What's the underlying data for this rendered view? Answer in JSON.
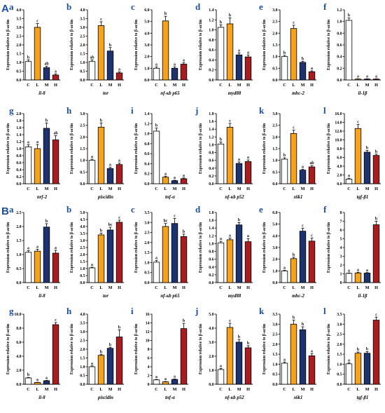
{
  "colors": {
    "C": "#ffffff",
    "L": "#f7a21b",
    "M": "#1d3370",
    "H": "#a91d21",
    "label": "#1a4fa0"
  },
  "sections": [
    {
      "label": "A",
      "panels": [
        {
          "letter": "a",
          "gene": "il-8",
          "ylabel": "Expression relative to β-actin",
          "yticks": [
            "0.0",
            "0.5",
            "1.0",
            "1.5",
            "2.0",
            "2.5",
            "3.0",
            "3.5",
            "4.0"
          ],
          "ymax": 4.0,
          "categories": [
            "C",
            "L",
            "M",
            "H"
          ],
          "values": [
            1.05,
            3.0,
            0.7,
            0.28
          ],
          "errors": [
            0.1,
            0.22,
            0.08,
            0.06
          ],
          "letters": [
            "b",
            "c",
            "ab",
            "a"
          ]
        },
        {
          "letter": "b",
          "gene": "tor",
          "ylabel": "Expression relative to β-actin",
          "yticks": [
            "0.0",
            "0.5",
            "1.0",
            "1.5",
            "2.0",
            "2.5",
            "3.0",
            "3.5",
            "4.0"
          ],
          "ymax": 4.0,
          "categories": [
            "C",
            "L",
            "M",
            "H"
          ],
          "values": [
            1.05,
            3.1,
            1.65,
            0.4
          ],
          "errors": [
            0.1,
            0.22,
            0.2,
            0.06
          ],
          "letters": [
            "ab",
            "c",
            "b",
            "a"
          ]
        },
        {
          "letter": "c",
          "gene": "nf-κb p65",
          "ylabel": "Expression relative to β-actin",
          "yticks": [
            "0.0",
            "1.0",
            "2.0",
            "3.0",
            "4.0",
            "5.0",
            "6.0"
          ],
          "ymax": 6.0,
          "categories": [
            "C",
            "L",
            "M",
            "H"
          ],
          "values": [
            1.0,
            5.05,
            1.0,
            1.35
          ],
          "errors": [
            0.12,
            0.4,
            0.12,
            0.12
          ],
          "letters": [
            "a",
            "b",
            "a",
            "a"
          ]
        },
        {
          "letter": "d",
          "gene": "myd88",
          "ylabel": "Expression relative to β-actin",
          "yticks": [
            "0.0",
            "0.2",
            "0.4",
            "0.6",
            "0.8",
            "1.0",
            "1.2",
            "1.4"
          ],
          "ymax": 1.4,
          "categories": [
            "C",
            "L",
            "M",
            "H"
          ],
          "values": [
            1.05,
            1.12,
            0.5,
            0.46
          ],
          "errors": [
            0.05,
            0.12,
            0.04,
            0.04
          ],
          "letters": [
            "b",
            "b",
            "a",
            "a"
          ]
        },
        {
          "letter": "e",
          "gene": "mhc-2",
          "ylabel": "Expression relative to β-actin",
          "yticks": [
            "0.0",
            "0.5",
            "1.0",
            "1.5",
            "2.0",
            "2.5",
            "3.0"
          ],
          "ymax": 3.0,
          "categories": [
            "C",
            "L",
            "M",
            "H"
          ],
          "values": [
            1.0,
            2.2,
            0.75,
            0.35
          ],
          "errors": [
            0.05,
            0.14,
            0.05,
            0.04
          ],
          "letters": [
            "b",
            "c",
            "b",
            "a"
          ]
        },
        {
          "letter": "f",
          "gene": "il-1β",
          "ylabel": "Expression relative to β-actin",
          "yticks": [
            "0.0",
            "0.2",
            "0.4",
            "0.6",
            "0.8",
            "1.0",
            "1.2"
          ],
          "ymax": 1.2,
          "categories": [
            "C",
            "L",
            "M",
            "H"
          ],
          "values": [
            1.02,
            0.015,
            0.015,
            0.015
          ],
          "errors": [
            0.04,
            0.004,
            0.004,
            0.004
          ],
          "letters": [
            "b",
            "a",
            "a",
            "a"
          ]
        }
      ]
    },
    {
      "label": "",
      "panels": [
        {
          "letter": "g",
          "gene": "nrf-2",
          "ylabel": "Expression relative to β-actin",
          "yticks": [
            "0.0",
            "0.2",
            "0.4",
            "0.6",
            "0.8",
            "1.0",
            "1.2",
            "1.4",
            "1.6",
            "1.8",
            "2.0"
          ],
          "ymax": 2.0,
          "categories": [
            "C",
            "L",
            "M",
            "H"
          ],
          "values": [
            1.05,
            1.0,
            1.58,
            1.25
          ],
          "errors": [
            0.06,
            0.12,
            0.15,
            0.12
          ],
          "letters": [
            "a",
            "a",
            "b",
            "ab"
          ]
        },
        {
          "letter": "h",
          "gene": "piscidin",
          "ylabel": "Expression relative to β-actin",
          "yticks": [
            "0.0",
            "0.5",
            "1.0",
            "1.5",
            "2.0",
            "2.5",
            "3.0"
          ],
          "ymax": 3.0,
          "categories": [
            "C",
            "L",
            "M",
            "H"
          ],
          "values": [
            1.0,
            2.42,
            0.65,
            0.82
          ],
          "errors": [
            0.05,
            0.18,
            0.05,
            0.06
          ],
          "letters": [
            "a",
            "b",
            "a",
            "a"
          ]
        },
        {
          "letter": "i",
          "gene": "tnf-α",
          "ylabel": "Expression relative to β-actin",
          "yticks": [
            "0.0",
            "0.2",
            "0.4",
            "0.6",
            "0.8",
            "1.0",
            "1.2",
            "1.4"
          ],
          "ymax": 1.4,
          "categories": [
            "C",
            "L",
            "M",
            "H"
          ],
          "values": [
            1.05,
            0.13,
            0.06,
            0.1
          ],
          "errors": [
            0.06,
            0.02,
            0.01,
            0.015
          ],
          "letters": [
            "b",
            "a",
            "a",
            "a"
          ]
        },
        {
          "letter": "j",
          "gene": "nf-κb p52",
          "ylabel": "Expression relative to β-actin",
          "yticks": [
            "0.0",
            "0.2",
            "0.4",
            "0.6",
            "0.8",
            "1.0",
            "1.2",
            "1.4",
            "1.6",
            "1.8"
          ],
          "ymax": 1.8,
          "categories": [
            "C",
            "L",
            "M",
            "H"
          ],
          "values": [
            1.02,
            1.45,
            0.52,
            0.57
          ],
          "errors": [
            0.05,
            0.1,
            0.04,
            0.04
          ],
          "letters": [
            "b",
            "c",
            "a",
            "a"
          ]
        },
        {
          "letter": "k",
          "gene": "s6k1",
          "ylabel": "Expression relative to β-actin",
          "yticks": [
            "0.0",
            "0.5",
            "1.0",
            "1.5",
            "2.0",
            "2.5",
            "3.0"
          ],
          "ymax": 3.0,
          "categories": [
            "C",
            "L",
            "M",
            "H"
          ],
          "values": [
            1.05,
            2.15,
            0.58,
            0.72
          ],
          "errors": [
            0.06,
            0.14,
            0.04,
            0.06
          ],
          "letters": [
            "b",
            "c",
            "a",
            "ab"
          ]
        },
        {
          "letter": "l",
          "gene": "tgf-β1",
          "ylabel": "Expression relative to β-actin",
          "yticks": [
            "0.0",
            "2.0",
            "4.0",
            "6.0",
            "8.0",
            "10.0",
            "12.0",
            "14.0",
            "16.0"
          ],
          "ymax": 16.0,
          "categories": [
            "C",
            "L",
            "M",
            "H"
          ],
          "values": [
            1.05,
            12.6,
            7.2,
            6.45
          ],
          "errors": [
            0.2,
            0.9,
            0.4,
            0.3
          ],
          "letters": [
            "a",
            "c",
            "b",
            "b"
          ]
        }
      ]
    },
    {
      "label": "B",
      "panels": [
        {
          "letter": "a",
          "gene": "il-8",
          "ylabel": "Expression relative to β-actin",
          "yticks": [
            "0.0",
            "0.5",
            "1.0",
            "1.5",
            "2.0",
            "2.5"
          ],
          "ymax": 2.5,
          "categories": [
            "C",
            "L",
            "M",
            "H"
          ],
          "values": [
            1.08,
            1.12,
            1.98,
            1.05
          ],
          "errors": [
            0.06,
            0.07,
            0.12,
            0.1
          ],
          "letters": [
            "a",
            "a",
            "b",
            "a"
          ]
        },
        {
          "letter": "b",
          "gene": "tor",
          "ylabel": "Expression relative to β-actin",
          "yticks": [
            "0.0",
            "0.5",
            "1.0",
            "1.5",
            "2.0",
            "2.5",
            "3.0",
            "3.5",
            "4.0",
            "4.5",
            "5.0"
          ],
          "ymax": 5.0,
          "categories": [
            "C",
            "L",
            "M",
            "H"
          ],
          "values": [
            1.05,
            3.4,
            3.75,
            4.3
          ],
          "errors": [
            0.05,
            0.12,
            0.2,
            0.15
          ],
          "letters": [
            "a",
            "b",
            "bc",
            "c"
          ]
        },
        {
          "letter": "c",
          "gene": "nf-κb p65",
          "ylabel": "Expression relative to β-actin",
          "yticks": [
            "0.0",
            "0.5",
            "1.0",
            "1.5",
            "2.0",
            "2.5",
            "3.0",
            "3.5"
          ],
          "ymax": 3.5,
          "categories": [
            "C",
            "L",
            "M",
            "H"
          ],
          "values": [
            1.02,
            2.8,
            2.95,
            2.3
          ],
          "errors": [
            0.08,
            0.15,
            0.25,
            0.12
          ],
          "letters": [
            "a",
            "bc",
            "c",
            "b"
          ]
        },
        {
          "letter": "d",
          "gene": "myd88",
          "ylabel": "Expression relative to β-actin",
          "yticks": [
            "0.0",
            "0.2",
            "0.4",
            "0.6",
            "0.8",
            "1.0",
            "1.2",
            "1.4",
            "1.6",
            "1.8"
          ],
          "ymax": 1.8,
          "categories": [
            "C",
            "L",
            "M",
            "H"
          ],
          "values": [
            1.02,
            1.1,
            1.48,
            1.05
          ],
          "errors": [
            0.04,
            0.04,
            0.06,
            0.08
          ],
          "letters": [
            "a",
            "a",
            "b",
            "a"
          ]
        },
        {
          "letter": "e",
          "gene": "mhc-2",
          "ylabel": "Expression relative to β-actin",
          "yticks": [
            "0.0",
            "1.0",
            "2.0",
            "3.0",
            "4.0",
            "5.0",
            "6.0"
          ],
          "ymax": 6.0,
          "categories": [
            "C",
            "L",
            "M",
            "H"
          ],
          "values": [
            1.0,
            2.05,
            4.4,
            3.55
          ],
          "errors": [
            0.06,
            0.12,
            0.25,
            0.25
          ],
          "letters": [
            "a",
            "b",
            "c",
            "c"
          ]
        },
        {
          "letter": "f",
          "gene": "il-1β",
          "ylabel": "Expression relative to β-actin",
          "yticks": [
            "0",
            "1",
            "2",
            "3",
            "4",
            "5",
            "6",
            "7",
            "8"
          ],
          "ymax": 8,
          "categories": [
            "C",
            "L",
            "M",
            "H"
          ],
          "values": [
            1.05,
            1.1,
            1.08,
            6.6
          ],
          "errors": [
            0.05,
            0.08,
            0.06,
            0.4
          ],
          "letters": [
            "a",
            "a",
            "a",
            "b"
          ]
        }
      ]
    },
    {
      "label": "",
      "panels": [
        {
          "letter": "g",
          "gene": "il-8",
          "ylabel": "Expression relative to β-actin",
          "yticks": [
            "0.0",
            "2.0",
            "4.0",
            "6.0",
            "8.0",
            "10.0"
          ],
          "ymax": 10.0,
          "categories": [
            "C",
            "L",
            "M",
            "H"
          ],
          "values": [
            0.9,
            0.25,
            0.5,
            8.5
          ],
          "errors": [
            0.08,
            0.04,
            0.05,
            0.3
          ],
          "letters": [
            "b",
            "a",
            "a",
            "c"
          ]
        },
        {
          "letter": "h",
          "gene": "piscidin",
          "ylabel": "Expression relative to β-actin",
          "yticks": [
            "0.0",
            "0.5",
            "1.0",
            "1.5",
            "2.0",
            "2.5",
            "3.0",
            "3.5",
            "4.0"
          ],
          "ymax": 4.0,
          "categories": [
            "C",
            "L",
            "M",
            "H"
          ],
          "values": [
            1.0,
            1.65,
            2.05,
            2.7
          ],
          "errors": [
            0.05,
            0.06,
            0.06,
            0.4
          ],
          "letters": [
            "a",
            "b",
            "b",
            "b"
          ]
        },
        {
          "letter": "i",
          "gene": "tnf-α",
          "ylabel": "Expression relative to β-actin",
          "yticks": [
            "0",
            "2",
            "4",
            "6",
            "8",
            "10",
            "12",
            "14",
            "16"
          ],
          "ymax": 16,
          "categories": [
            "C",
            "L",
            "M",
            "H"
          ],
          "values": [
            1.0,
            0.55,
            1.1,
            12.7
          ],
          "errors": [
            0.1,
            0.08,
            0.1,
            1.2
          ],
          "letters": [
            "a",
            "a",
            "a",
            "b"
          ]
        },
        {
          "letter": "j",
          "gene": "nf-κb p52",
          "ylabel": "Expression relative to β-actin",
          "yticks": [
            "0.0",
            "1.0",
            "2.0",
            "3.0",
            "4.0",
            "5.0"
          ],
          "ymax": 5.0,
          "categories": [
            "C",
            "L",
            "M",
            "H"
          ],
          "values": [
            1.05,
            4.05,
            3.0,
            2.6
          ],
          "errors": [
            0.08,
            0.3,
            0.2,
            0.15
          ],
          "letters": [
            "a",
            "c",
            "b",
            "b"
          ]
        },
        {
          "letter": "k",
          "gene": "s6k1",
          "ylabel": "Expression relative to β-actin",
          "yticks": [
            "0.0",
            "0.5",
            "1.0",
            "1.5",
            "2.0",
            "2.5",
            "3.0",
            "3.5"
          ],
          "ymax": 3.5,
          "categories": [
            "C",
            "L",
            "M",
            "H"
          ],
          "values": [
            1.05,
            3.0,
            2.72,
            1.42
          ],
          "errors": [
            0.06,
            0.2,
            0.15,
            0.1
          ],
          "letters": [
            "a",
            "b",
            "b",
            "a"
          ]
        },
        {
          "letter": "l",
          "gene": "tgf-β1",
          "ylabel": "Expression relative to β-actin",
          "yticks": [
            "0.0",
            "0.5",
            "1.0",
            "1.5",
            "2.0",
            "2.5",
            "3.0",
            "3.5"
          ],
          "ymax": 3.5,
          "categories": [
            "C",
            "L",
            "M",
            "H"
          ],
          "values": [
            1.02,
            1.55,
            1.55,
            3.2
          ],
          "errors": [
            0.05,
            0.06,
            0.08,
            0.15
          ],
          "letters": [
            "a",
            "b",
            "b",
            "c"
          ]
        }
      ]
    }
  ]
}
